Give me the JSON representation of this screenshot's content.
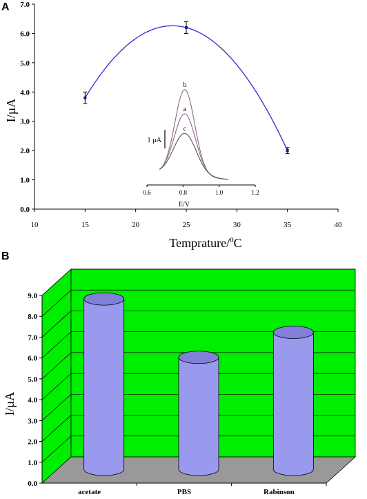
{
  "chart_data": [
    {
      "panel": "A",
      "type": "line",
      "xlabel": "Temprature/",
      "xlabel_sup": "0",
      "xlabel_unit": "C",
      "ylabel": "I/µA",
      "xlim": [
        10,
        40
      ],
      "ylim": [
        0,
        7
      ],
      "x_ticks": [
        "10",
        "15",
        "20",
        "25",
        "30",
        "35",
        "40"
      ],
      "y_ticks": [
        "0.0",
        "1.0",
        "2.0",
        "3.0",
        "4.0",
        "5.0",
        "6.0",
        "7.0"
      ],
      "series": [
        {
          "x": [
            15,
            25,
            35
          ],
          "y": [
            3.8,
            6.2,
            2.0
          ],
          "err": [
            0.2,
            0.2,
            0.1
          ],
          "color": "#2b2bd0"
        }
      ],
      "inset": {
        "type": "line",
        "xlabel": "E/V",
        "xlim": [
          0.6,
          1.2
        ],
        "x_ticks": [
          "0.6",
          "0.8",
          "1.0",
          "1.2"
        ],
        "scale_bar_label": "1 µA",
        "curves": [
          {
            "label": "b",
            "peak": 4.6,
            "color": "#8a6a8a"
          },
          {
            "label": "a",
            "peak": 3.3,
            "color": "#8a6a8a"
          },
          {
            "label": "c",
            "peak": 2.25,
            "color": "#555555"
          }
        ]
      }
    },
    {
      "panel": "B",
      "type": "bar",
      "categories": [
        "acetate",
        "PBS",
        "Rabinson"
      ],
      "values": [
        8.5,
        5.7,
        6.9
      ],
      "ylabel": "I/µA",
      "ylim": [
        0,
        9
      ],
      "y_ticks": [
        "0.0",
        "1.0",
        "2.0",
        "3.0",
        "4.0",
        "5.0",
        "6.0",
        "7.0",
        "8.0",
        "9.0"
      ],
      "bar_color": "#9999ee",
      "wall_color": "#00ee00",
      "floor_color": "#999999"
    }
  ],
  "panel_labels": {
    "a": "A",
    "b": "B"
  }
}
